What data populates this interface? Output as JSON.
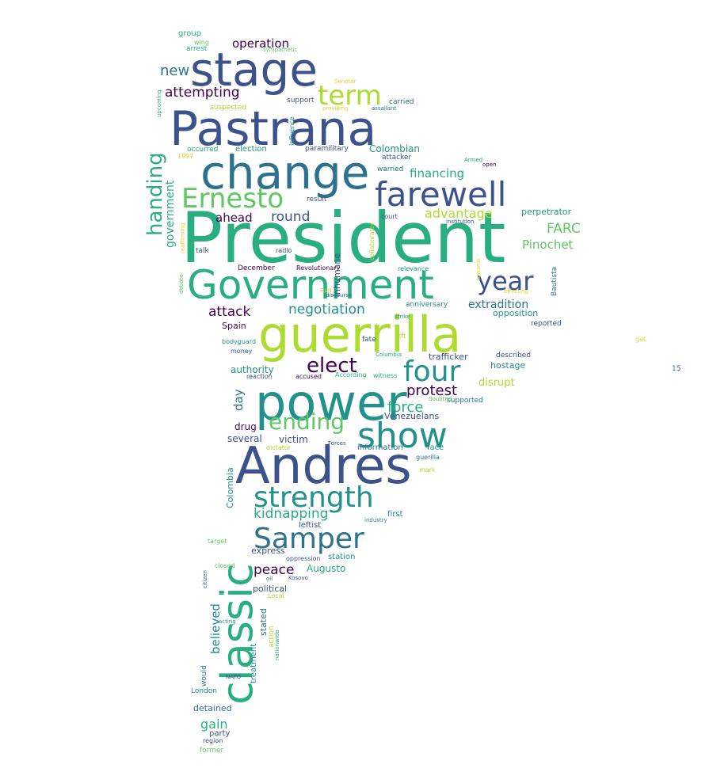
{
  "wordcloud": {
    "colors": {
      "c1": "#440154",
      "c2": "#3b528b",
      "c3": "#2c728e",
      "c4": "#21918c",
      "c5": "#28ae80",
      "c6": "#5ec962",
      "c7": "#addc30",
      "c8": "#e0d628"
    },
    "words": [
      {
        "text": "President",
        "color": "c5"
      },
      {
        "text": "guerrilla",
        "color": "c7"
      },
      {
        "text": "Government",
        "color": "c5"
      },
      {
        "text": "Pastrana",
        "color": "c2"
      },
      {
        "text": "Andres",
        "color": "c2"
      },
      {
        "text": "power",
        "color": "c4"
      },
      {
        "text": "change",
        "color": "c3"
      },
      {
        "text": "stage",
        "color": "c2"
      },
      {
        "text": "classic",
        "color": "c5"
      },
      {
        "text": "show",
        "color": "c4"
      },
      {
        "text": "farewell",
        "color": "c2"
      },
      {
        "text": "four",
        "color": "c4"
      },
      {
        "text": "strength",
        "color": "c4"
      },
      {
        "text": "Samper",
        "color": "c3"
      },
      {
        "text": "Ernesto",
        "color": "c6"
      },
      {
        "text": "term",
        "color": "c7"
      },
      {
        "text": "year",
        "color": "c2"
      },
      {
        "text": "elect",
        "color": "c1"
      },
      {
        "text": "ending",
        "color": "c6"
      },
      {
        "text": "handing",
        "color": "c5"
      },
      {
        "text": "protest",
        "color": "c1"
      },
      {
        "text": "force",
        "color": "c5"
      },
      {
        "text": "attack",
        "color": "c1"
      },
      {
        "text": "negotiation",
        "color": "c4"
      },
      {
        "text": "kidnapping",
        "color": "c5"
      },
      {
        "text": "peace",
        "color": "c1"
      },
      {
        "text": "attempting",
        "color": "c1"
      },
      {
        "text": "operation",
        "color": "c1"
      },
      {
        "text": "new",
        "color": "c3"
      },
      {
        "text": "round",
        "color": "c2"
      },
      {
        "text": "ahead",
        "color": "c1"
      },
      {
        "text": "advantage",
        "color": "c7"
      },
      {
        "text": "FARC",
        "color": "c6"
      },
      {
        "text": "Pinochet",
        "color": "c6"
      },
      {
        "text": "financing",
        "color": "c5"
      },
      {
        "text": "extradition",
        "color": "c3"
      },
      {
        "text": "government",
        "color": "c5"
      },
      {
        "text": "believed",
        "color": "c4"
      },
      {
        "text": "authority",
        "color": "c4"
      },
      {
        "text": "disrupt",
        "color": "c7"
      },
      {
        "text": "day",
        "color": "c3"
      },
      {
        "text": "gain",
        "color": "c5"
      },
      {
        "text": "Colombian",
        "color": "c4"
      },
      {
        "text": "Augusto",
        "color": "c5"
      },
      {
        "text": "drug",
        "color": "c1"
      },
      {
        "text": "several",
        "color": "c2"
      },
      {
        "text": "victim",
        "color": "c2"
      },
      {
        "text": "political",
        "color": "c2"
      },
      {
        "text": "perpetrator",
        "color": "c4"
      },
      {
        "text": "opposition",
        "color": "c4"
      },
      {
        "text": "hostage",
        "color": "c4"
      },
      {
        "text": "trafficker",
        "color": "c2"
      },
      {
        "text": "Venezuelans",
        "color": "c2"
      },
      {
        "text": "Colombia",
        "color": "c4"
      },
      {
        "text": "inhumane",
        "color": "c2"
      },
      {
        "text": "stated",
        "color": "c3"
      },
      {
        "text": "treatment",
        "color": "c4"
      },
      {
        "text": "Spain",
        "color": "c1"
      },
      {
        "text": "express",
        "color": "c2"
      },
      {
        "text": "leftist",
        "color": "c2"
      },
      {
        "text": "first",
        "color": "c4"
      },
      {
        "text": "station",
        "color": "c4"
      },
      {
        "text": "detained",
        "color": "c3"
      },
      {
        "text": "party",
        "color": "c2"
      },
      {
        "text": "London",
        "color": "c4"
      },
      {
        "text": "information",
        "color": "c3"
      },
      {
        "text": "face",
        "color": "c4"
      },
      {
        "text": "supported",
        "color": "c3"
      },
      {
        "text": "anniversary",
        "color": "c4"
      },
      {
        "text": "reported",
        "color": "c2"
      },
      {
        "text": "described",
        "color": "c2"
      },
      {
        "text": "Bautista",
        "color": "c3"
      },
      {
        "text": "collaborator",
        "color": "c7"
      },
      {
        "text": "would",
        "color": "c3"
      },
      {
        "text": "action",
        "color": "c7"
      },
      {
        "text": "group",
        "color": "c5"
      },
      {
        "text": "arrest",
        "color": "c5"
      },
      {
        "text": "wing",
        "color": "c6"
      },
      {
        "text": "sympathetic",
        "color": "c6"
      },
      {
        "text": "Senator",
        "color": "c8"
      },
      {
        "text": "upcoming",
        "color": "c5"
      },
      {
        "text": "suspected",
        "color": "c7"
      },
      {
        "text": "support",
        "color": "c2"
      },
      {
        "text": "carried",
        "color": "c3"
      },
      {
        "text": "providing",
        "color": "c8"
      },
      {
        "text": "assailant",
        "color": "c3"
      },
      {
        "text": "influence",
        "color": "c4"
      },
      {
        "text": "occurred",
        "color": "c5"
      },
      {
        "text": "election",
        "color": "c4"
      },
      {
        "text": "paramilitary",
        "color": "c2"
      },
      {
        "text": "attacker",
        "color": "c2"
      },
      {
        "text": "1997",
        "color": "c8"
      },
      {
        "text": "Armed",
        "color": "c5"
      },
      {
        "text": "open",
        "color": "c1"
      },
      {
        "text": "warned",
        "color": "c3"
      },
      {
        "text": "result",
        "color": "c2"
      },
      {
        "text": "court",
        "color": "c2"
      },
      {
        "text": "institution",
        "color": "c2"
      },
      {
        "text": "reaffirming",
        "color": "c8"
      },
      {
        "text": "talk",
        "color": "c2"
      },
      {
        "text": "radio",
        "color": "c2"
      },
      {
        "text": "December",
        "color": "c1"
      },
      {
        "text": "Revolutionary",
        "color": "c1"
      },
      {
        "text": "relevance",
        "color": "c4"
      },
      {
        "text": "towards",
        "color": "c8"
      },
      {
        "text": "effecting",
        "color": "c8"
      },
      {
        "text": "debate",
        "color": "c6"
      },
      {
        "text": "ELN",
        "color": "c8"
      },
      {
        "text": "discourse",
        "color": "c3"
      },
      {
        "text": "strike",
        "color": "c4"
      },
      {
        "text": "left",
        "color": "c7"
      },
      {
        "text": "fate",
        "color": "c2"
      },
      {
        "text": "bodyguard",
        "color": "c4"
      },
      {
        "text": "money",
        "color": "c2"
      },
      {
        "text": "Columbia",
        "color": "c5"
      },
      {
        "text": "accused",
        "color": "c1"
      },
      {
        "text": "reaction",
        "color": "c2"
      },
      {
        "text": "According",
        "color": "c5"
      },
      {
        "text": "witness",
        "color": "c5"
      },
      {
        "text": "doubted",
        "color": "c6"
      },
      {
        "text": "get",
        "color": "c8"
      },
      {
        "text": "15",
        "color": "c3"
      },
      {
        "text": "dictator",
        "color": "c7"
      },
      {
        "text": "Forces",
        "color": "c2"
      },
      {
        "text": "guerilla",
        "color": "c3"
      },
      {
        "text": "mark",
        "color": "c7"
      },
      {
        "text": "industry",
        "color": "c4"
      },
      {
        "text": "target",
        "color": "c6"
      },
      {
        "text": "closed",
        "color": "c6"
      },
      {
        "text": "citizen",
        "color": "c3"
      },
      {
        "text": "oppression",
        "color": "c2"
      },
      {
        "text": "oil",
        "color": "c3"
      },
      {
        "text": "Kosovo",
        "color": "c2"
      },
      {
        "text": "Local",
        "color": "c7"
      },
      {
        "text": "acting",
        "color": "c4"
      },
      {
        "text": "nationwide",
        "color": "c5"
      },
      {
        "text": "NATO",
        "color": "c2"
      },
      {
        "text": "region",
        "color": "c2"
      },
      {
        "text": "former",
        "color": "c6"
      }
    ]
  }
}
